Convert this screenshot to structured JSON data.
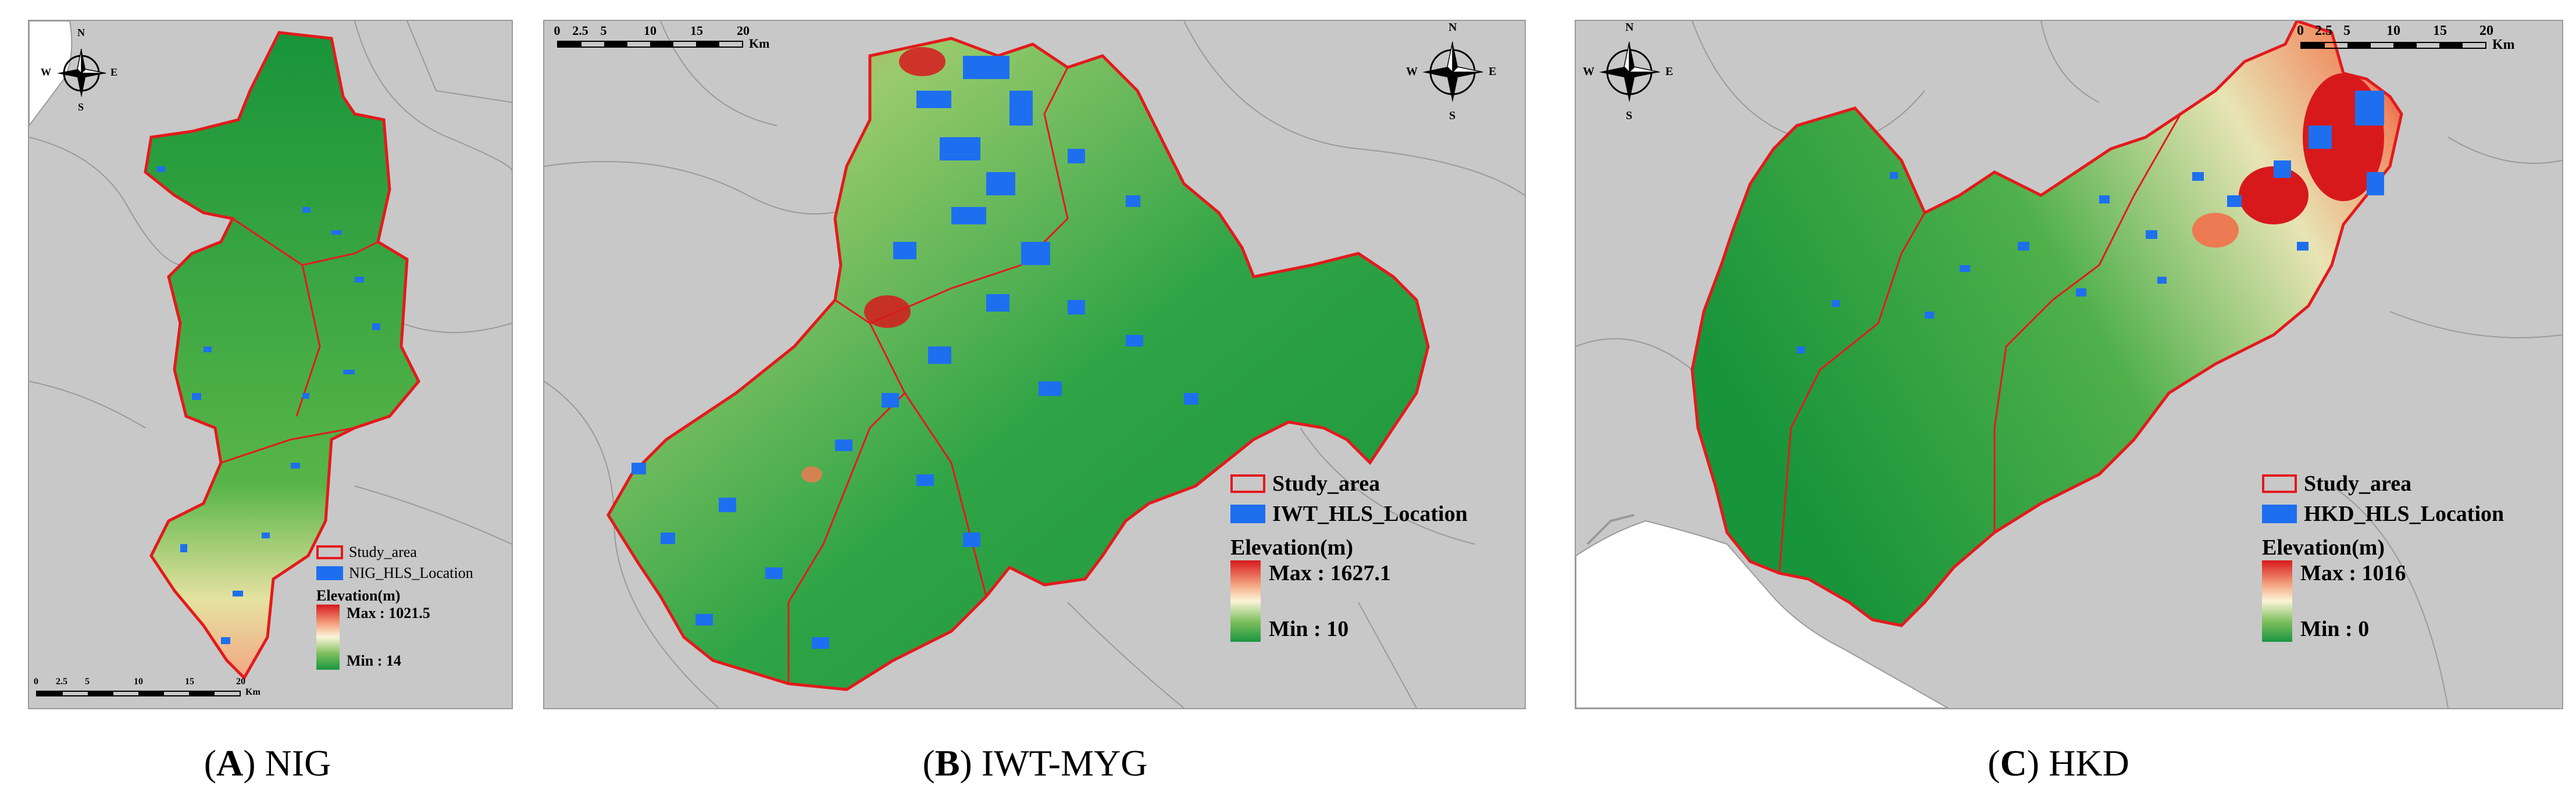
{
  "panels": [
    {
      "id": "A",
      "caption_letter": "A",
      "caption_name": " NIG",
      "legend": {
        "study_area": "Study_area",
        "location": "NIG_HLS_Location",
        "elevation_title": "Elevation(m)",
        "max": "Max : 1021.5",
        "min": "Min : 14"
      },
      "scale": {
        "ticks": [
          "0",
          "2.5",
          "5",
          "10",
          "15",
          "20"
        ],
        "unit": "Km"
      },
      "compass": {
        "n": "N",
        "s": "S",
        "e": "E",
        "w": "W"
      }
    },
    {
      "id": "B",
      "caption_letter": "B",
      "caption_name": " IWT-MYG",
      "legend": {
        "study_area": "Study_area",
        "location": "IWT_HLS_Location",
        "elevation_title": "Elevation(m)",
        "max": "Max : 1627.1",
        "min": "Min : 10"
      },
      "scale": {
        "ticks": [
          "0",
          "2.5",
          "5",
          "10",
          "15",
          "20"
        ],
        "unit": "Km"
      },
      "compass": {
        "n": "N",
        "s": "S",
        "e": "E",
        "w": "W"
      }
    },
    {
      "id": "C",
      "caption_letter": "C",
      "caption_name": " HKD",
      "legend": {
        "study_area": "Study_area",
        "location": "HKD_HLS_Location",
        "elevation_title": "Elevation(m)",
        "max": "Max : 1016",
        "min": "Min : 0"
      },
      "scale": {
        "ticks": [
          "0",
          "2.5",
          "5",
          "10",
          "15",
          "20"
        ],
        "unit": "Km"
      },
      "compass": {
        "n": "N",
        "s": "S",
        "e": "E",
        "w": "W"
      }
    }
  ],
  "colors": {
    "study_area_outline": "#e31a1c",
    "hls_location": "#1e6ff0",
    "background": "#c8c8c8",
    "elevation_high": "#d7191c",
    "elevation_mid": "#fbf5d8",
    "elevation_low": "#1a9641"
  }
}
